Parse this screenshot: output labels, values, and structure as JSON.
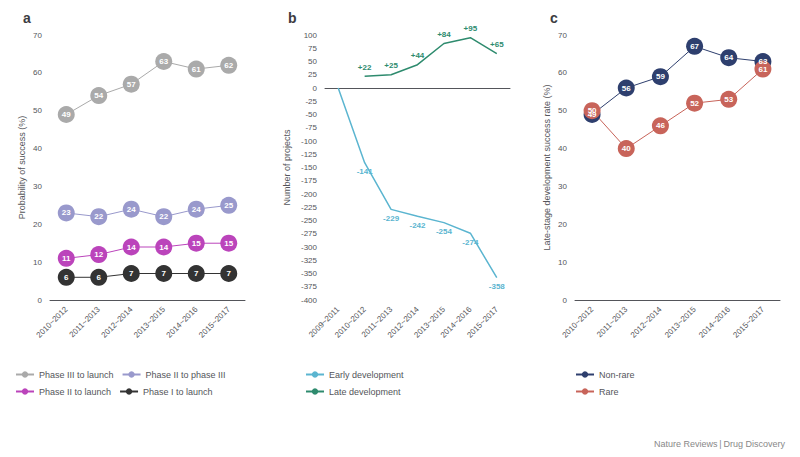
{
  "chart_data": [
    {
      "type": "line",
      "title": "a",
      "categories": [
        "2010~2012",
        "2011~2013",
        "2012~2014",
        "2013~2015",
        "2014~2016",
        "2015~2017"
      ],
      "series": [
        {
          "name": "Phase III to launch",
          "color": "#aaaaaa",
          "values": [
            49,
            54,
            57,
            63,
            61,
            62
          ]
        },
        {
          "name": "Phase II to phase III",
          "color": "#9999cc",
          "values": [
            23,
            22,
            24,
            22,
            24,
            25
          ]
        },
        {
          "name": "Phase II to launch",
          "color": "#bb44bb",
          "values": [
            11,
            12,
            14,
            14,
            15,
            15
          ]
        },
        {
          "name": "Phase I to launch",
          "color": "#333333",
          "values": [
            6,
            6,
            7,
            7,
            7,
            7
          ]
        }
      ],
      "y_label": "Probability of success (%)",
      "ylim": [
        0,
        70
      ],
      "yticks": [
        0,
        10,
        20,
        30,
        40,
        50,
        60,
        70
      ],
      "marker": "circle",
      "data_labels": true,
      "grid": false,
      "legend": "bottom"
    },
    {
      "type": "line",
      "title": "b",
      "categories": [
        "2009~2011",
        "2010~2012",
        "2011~2013",
        "2012~2014",
        "2013~2015",
        "2014~2016",
        "2015~2017"
      ],
      "series": [
        {
          "name": "Early development",
          "color": "#5bb5d0",
          "values": [
            0,
            -141,
            -229,
            -242,
            -254,
            -274,
            -358
          ],
          "value_labels": [
            null,
            "-141",
            "-229",
            "-242",
            "-254",
            "-274",
            "-358"
          ]
        },
        {
          "name": "Late development",
          "color": "#2e8b6e",
          "values": [
            null,
            22,
            25,
            44,
            84,
            95,
            65
          ],
          "value_labels": [
            null,
            "+22",
            "+25",
            "+44",
            "+84",
            "+95",
            "+65"
          ]
        }
      ],
      "y_label": "Number of projects",
      "ylim": [
        -400,
        100
      ],
      "yticks": [
        -400,
        -375,
        -350,
        -325,
        -300,
        -275,
        -250,
        -225,
        -200,
        -175,
        -150,
        -125,
        -100,
        -75,
        -50,
        -25,
        0,
        25,
        50,
        75,
        100
      ],
      "marker": "none",
      "data_labels": true,
      "grid": false,
      "legend": "bottom"
    },
    {
      "type": "line",
      "title": "c",
      "categories": [
        "2010~2012",
        "2011~2013",
        "2012~2014",
        "2013~2015",
        "2014~2016",
        "2015~2017"
      ],
      "series": [
        {
          "name": "Non-rare",
          "color": "#2e3f6e",
          "values": [
            49,
            56,
            59,
            67,
            64,
            63
          ]
        },
        {
          "name": "Rare",
          "color": "#c8645a",
          "values": [
            50,
            40,
            46,
            52,
            53,
            61
          ]
        }
      ],
      "y_label": "Late-stage development success rate (%)",
      "ylim": [
        0,
        70
      ],
      "yticks": [
        0,
        10,
        20,
        30,
        40,
        50,
        60,
        70
      ],
      "marker": "circle",
      "data_labels": true,
      "grid": false,
      "legend": "bottom",
      "annotation": "Nature Reviews | Drug Discovery"
    }
  ]
}
